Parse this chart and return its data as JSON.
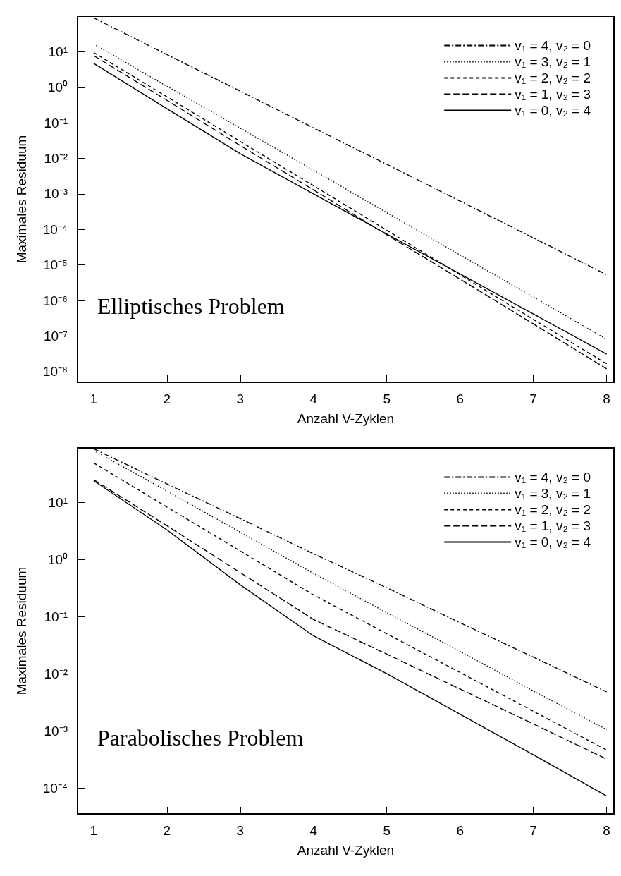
{
  "chart_data": [
    {
      "type": "line",
      "xlabel": "Anzahl V-Zyklen",
      "ylabel": "Maximales Residuum",
      "annotations": [
        "Elliptisches Problem"
      ],
      "x": [
        1,
        2,
        3,
        4,
        5,
        6,
        7,
        8
      ],
      "xlim": [
        0.78,
        8.1
      ],
      "xticks": [
        1,
        2,
        3,
        4,
        5,
        6,
        7,
        8
      ],
      "ylim": [
        5e-09,
        100
      ],
      "log": "y",
      "yticks": [
        {
          "value": 10,
          "label": "10¹"
        },
        {
          "value": 1,
          "label": "10⁰"
        },
        {
          "value": 0.1,
          "label": "10⁻¹"
        },
        {
          "value": 0.01,
          "label": "10⁻²"
        },
        {
          "value": 0.001,
          "label": "10⁻³"
        },
        {
          "value": 0.0001,
          "label": "10⁻⁴"
        },
        {
          "value": 1e-05,
          "label": "10⁻⁵"
        },
        {
          "value": 1e-06,
          "label": "10⁻⁶"
        },
        {
          "value": 1e-07,
          "label": "10⁻⁷"
        },
        {
          "value": 1e-08,
          "label": "10⁻⁸"
        }
      ],
      "grid": false,
      "legend": "top right",
      "marker": "none",
      "series": [
        {
          "name": "v₁ = 4, v₂ = 0",
          "color": "#000000",
          "line_style": "dashdot",
          "values": [
            90,
            8.3,
            0.78,
            0.072,
            0.0068,
            0.00063,
            5.8e-05,
            5.3e-06
          ]
        },
        {
          "name": "v₁ = 3, v₂ = 1",
          "color": "#000000",
          "line_style": "dotted",
          "values": [
            16.6,
            1.07,
            0.071,
            0.0046,
            0.000295,
            1.9e-05,
            1.26e-06,
            8.1e-08
          ]
        },
        {
          "name": "v₁ = 2, v₂ = 2",
          "color": "#000000",
          "line_style": "dashed",
          "values": [
            9.5,
            0.54,
            0.03,
            0.0017,
            9.5e-05,
            5.3e-06,
            2.95e-07,
            1.66e-08
          ]
        },
        {
          "name": "v₁ = 1, v₂ = 3",
          "color": "#000000",
          "line_style": "longdash",
          "values": [
            7.8,
            0.43,
            0.023,
            0.0013,
            7.1e-05,
            4e-06,
            2.2e-07,
            1.2e-08
          ]
        },
        {
          "name": "v₁ = 0, v₂ = 4",
          "color": "#000000",
          "line_style": "solid",
          "values": [
            4.7,
            0.25,
            0.0135,
            0.001,
            7.4e-05,
            5.6e-06,
            4.2e-07,
            3.1e-08
          ]
        }
      ]
    },
    {
      "type": "line",
      "xlabel": "Anzahl V-Zyklen",
      "ylabel": "Maximales Residuum",
      "annotations": [
        "Parabolisches Problem"
      ],
      "x": [
        1,
        2,
        3,
        4,
        5,
        6,
        7,
        8
      ],
      "xlim": [
        0.78,
        8.1
      ],
      "xticks": [
        1,
        2,
        3,
        4,
        5,
        6,
        7,
        8
      ],
      "ylim": [
        3.5e-05,
        90
      ],
      "log": "y",
      "yticks": [
        {
          "value": 10,
          "label": "10¹"
        },
        {
          "value": 1,
          "label": "10⁰"
        },
        {
          "value": 0.1,
          "label": "10⁻¹"
        },
        {
          "value": 0.01,
          "label": "10⁻²"
        },
        {
          "value": 0.001,
          "label": "10⁻³"
        },
        {
          "value": 0.0001,
          "label": "10⁻⁴"
        }
      ],
      "grid": false,
      "legend": "top right",
      "marker": "none",
      "series": [
        {
          "name": "v₁ = 4, v₂ = 0",
          "color": "#000000",
          "line_style": "dashdot",
          "values": [
            87,
            21,
            5.2,
            1.26,
            0.32,
            0.078,
            0.0195,
            0.0048
          ]
        },
        {
          "name": "v₁ = 3, v₂ = 1",
          "color": "#000000",
          "line_style": "dotted",
          "values": [
            81,
            15.8,
            3.0,
            0.57,
            0.117,
            0.0245,
            0.005,
            0.00105
          ]
        },
        {
          "name": "v₁ = 2, v₂ = 2",
          "color": "#000000",
          "line_style": "dashed",
          "values": [
            49,
            8.3,
            1.41,
            0.24,
            0.05,
            0.0105,
            0.0022,
            0.00046
          ]
        },
        {
          "name": "v₁ = 1, v₂ = 3",
          "color": "#000000",
          "line_style": "longdash",
          "values": [
            25,
            3.9,
            0.59,
            0.089,
            0.022,
            0.0054,
            0.00132,
            0.00032
          ]
        },
        {
          "name": "v₁ = 0, v₂ = 4",
          "color": "#000000",
          "line_style": "solid",
          "values": [
            24,
            3.3,
            0.36,
            0.046,
            0.01,
            0.00195,
            0.00038,
            7.2e-05
          ]
        }
      ]
    }
  ]
}
